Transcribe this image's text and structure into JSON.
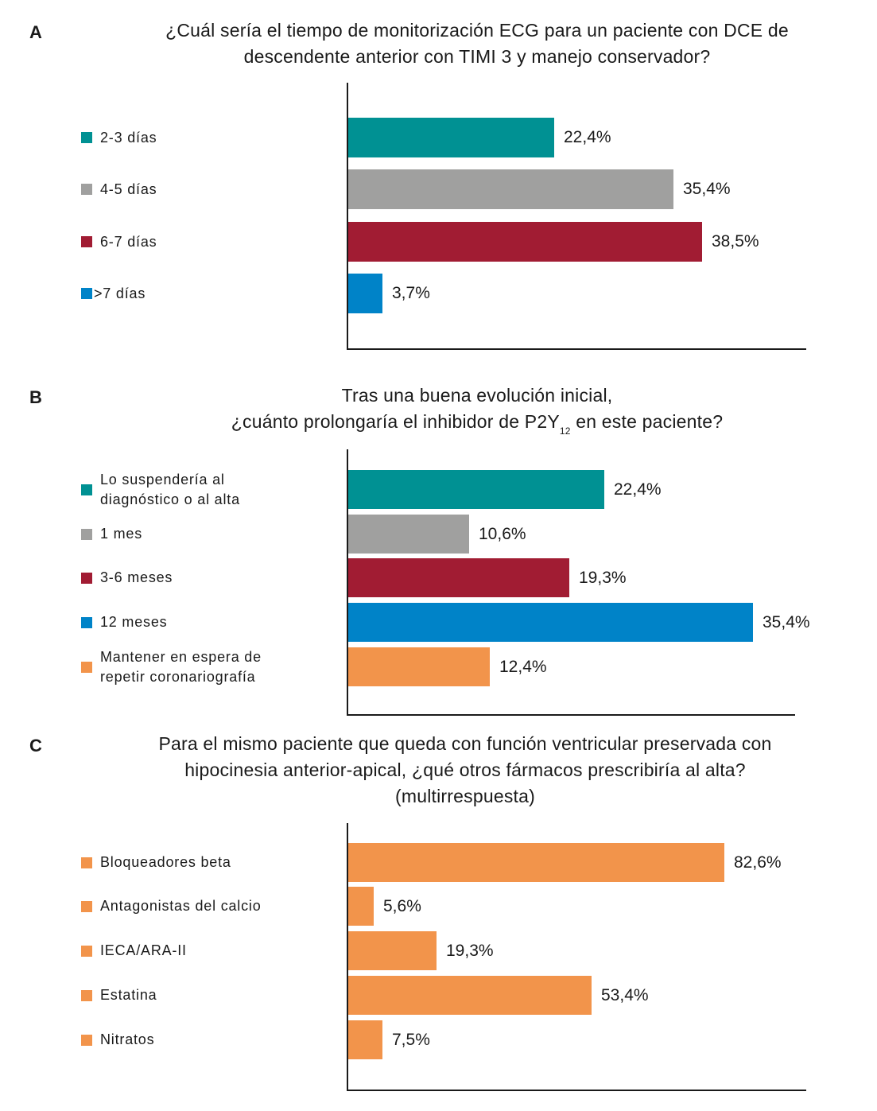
{
  "colors": {
    "teal": "#009193",
    "gray": "#a0a09f",
    "crimson": "#a11c33",
    "blue": "#0083c8",
    "orange": "#f2944b",
    "axis": "#1a1a1a"
  },
  "chart_data": [
    {
      "type": "bar",
      "orientation": "horizontal",
      "panel": "A",
      "title": "¿Cuál sería el tiempo de monitorización ECG para un paciente con DCE de descendente anterior con TIMI 3 y manejo conservador?",
      "title_lines": [
        "¿Cuál sería el tiempo de monitorización ECG para un paciente con DCE de",
        "descendente anterior con TIMI 3 y manejo conservador?"
      ],
      "categories": [
        "2-3 días",
        "4-5 días",
        "6-7 días",
        ">7 días"
      ],
      "values": [
        22.4,
        35.4,
        38.5,
        3.7
      ],
      "value_labels": [
        "22,4%",
        "35,4%",
        "38,5%",
        "3,7%"
      ],
      "colors": [
        "#009193",
        "#a0a09f",
        "#a11c33",
        "#0083c8"
      ],
      "unit": "%",
      "legend": "left",
      "grid": false
    },
    {
      "type": "bar",
      "orientation": "horizontal",
      "panel": "B",
      "title": "Tras una buena evolución inicial, ¿cuánto prolongaría el inhibidor de P2Y12 en este paciente?",
      "title_line1": "Tras una buena evolución inicial,",
      "title_line2_pre": "¿cuánto prolongaría el inhibidor de P2Y",
      "title_line2_sub": "12",
      "title_line2_post": " en este paciente?",
      "categories": [
        "Lo suspendería al\ndiagnóstico o al alta",
        "1 mes",
        "3-6 meses",
        "12 meses",
        "Mantener en espera de\nrepetir coronariografía"
      ],
      "values": [
        22.4,
        10.6,
        19.3,
        35.4,
        12.4
      ],
      "value_labels": [
        "22,4%",
        "10,6%",
        "19,3%",
        "35,4%",
        "12,4%"
      ],
      "colors": [
        "#009193",
        "#a0a09f",
        "#a11c33",
        "#0083c8",
        "#f2944b"
      ],
      "unit": "%",
      "legend": "left",
      "grid": false
    },
    {
      "type": "bar",
      "orientation": "horizontal",
      "panel": "C",
      "title": "Para el mismo paciente que queda con función ventricular preservada con hipocinesia anterior-apical, ¿qué otros fármacos prescribiría al alta? (multirrespuesta)",
      "title_lines": [
        "Para el mismo paciente que queda con función ventricular preservada con",
        "hipocinesia anterior-apical, ¿qué otros fármacos prescribiría al alta?",
        "(multirrespuesta)"
      ],
      "categories": [
        "Bloqueadores beta",
        "Antagonistas del calcio",
        "IECA/ARA-II",
        "Estatina",
        "Nitratos"
      ],
      "values": [
        82.6,
        5.6,
        19.3,
        53.4,
        7.5
      ],
      "value_labels": [
        "82,6%",
        "5,6%",
        "19,3%",
        "53,4%",
        "7,5%"
      ],
      "colors": [
        "#f2944b",
        "#f2944b",
        "#f2944b",
        "#f2944b",
        "#f2944b"
      ],
      "unit": "%",
      "legend": "left",
      "grid": false
    }
  ]
}
